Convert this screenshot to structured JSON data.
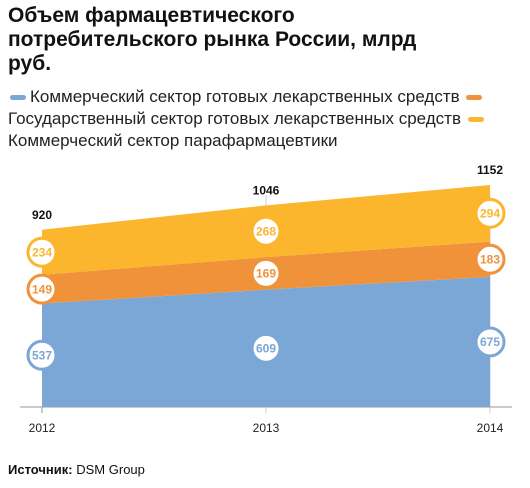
{
  "chart_data": {
    "type": "stacked-area",
    "title": "Объем фармацевтического потребительского рынка России, млрд руб.",
    "categories": [
      "2012",
      "2013",
      "2014"
    ],
    "series": [
      {
        "name": "Коммерческий сектор готовых лекарственных средств",
        "color": "#7ba7d7",
        "values": [
          537,
          609,
          675
        ]
      },
      {
        "name": "Государственный сектор готовых лекарственных средств",
        "color": "#f0923a",
        "values": [
          149,
          169,
          183
        ]
      },
      {
        "name": "Коммерческий сектор парафармацевтики",
        "color": "#fbb62e",
        "values": [
          234,
          268,
          294
        ]
      }
    ],
    "totals": [
      920,
      1046,
      1152
    ],
    "source_label": "Источник:",
    "source": "DSM Group"
  }
}
